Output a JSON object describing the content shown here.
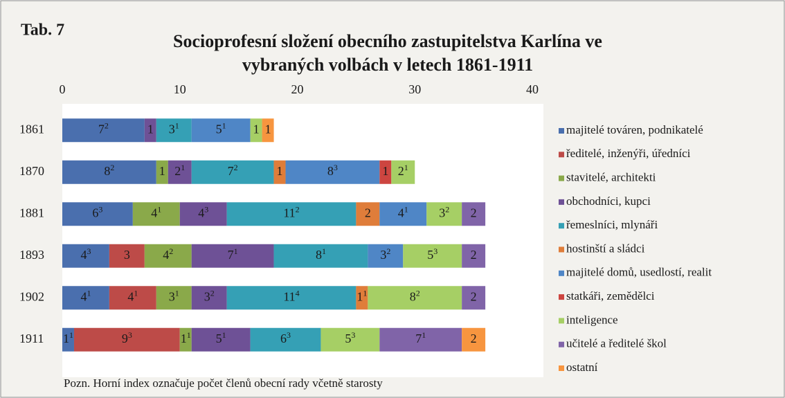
{
  "chart_data": {
    "type": "stacked-bar-horizontal",
    "label": "Tab. 7",
    "title_lines": [
      "Socioprofesní složení obecního zastupitelstva Karlína ve",
      "vybraných volbách v letech 1861-1911"
    ],
    "note": "Pozn. Horní index označuje počet členů obecní rady včetně starosty",
    "categories": [
      "1861",
      "1870",
      "1881",
      "1893",
      "1902",
      "1911"
    ],
    "xlim": [
      0,
      40
    ],
    "xticks": [
      0,
      10,
      20,
      30,
      40
    ],
    "legend": "right",
    "series": [
      {
        "name": "majitelé továren, podnikatelé",
        "color": "#4a6fae",
        "values": [
          7,
          8,
          6,
          4,
          4,
          1
        ],
        "superscripts": [
          2,
          2,
          3,
          3,
          1,
          1
        ]
      },
      {
        "name": "ředitelé, inženýři, úředníci",
        "color": "#bd4b48",
        "values": [
          null,
          null,
          null,
          3,
          4,
          9
        ],
        "superscripts": [
          null,
          null,
          null,
          null,
          1,
          3
        ]
      },
      {
        "name": "stavitelé, architekti",
        "color": "#8aa94a",
        "values": [
          null,
          1,
          4,
          4,
          3,
          1
        ],
        "superscripts": [
          null,
          null,
          1,
          2,
          1,
          1
        ]
      },
      {
        "name": "obchodníci, kupci",
        "color": "#6e5196",
        "values": [
          1,
          2,
          4,
          7,
          3,
          5
        ],
        "superscripts": [
          null,
          1,
          3,
          1,
          2,
          1
        ]
      },
      {
        "name": "řemeslníci, mlynáři",
        "color": "#35a0b5",
        "values": [
          3,
          7,
          11,
          8,
          11,
          6
        ],
        "superscripts": [
          1,
          2,
          2,
          1,
          4,
          3
        ]
      },
      {
        "name": "hostinští a sládci",
        "color": "#df7d3a",
        "values": [
          null,
          1,
          2,
          null,
          1,
          null
        ],
        "superscripts": [
          null,
          null,
          null,
          null,
          1,
          null
        ]
      },
      {
        "name": "majitelé domů, usedlostí, realit",
        "color": "#4f86c6",
        "values": [
          5,
          8,
          4,
          3,
          null,
          null
        ],
        "superscripts": [
          1,
          3,
          1,
          2,
          null,
          null
        ]
      },
      {
        "name": "statkáři, zemědělci",
        "color": "#cd4540",
        "values": [
          null,
          1,
          null,
          null,
          null,
          null
        ],
        "superscripts": [
          null,
          null,
          null,
          null,
          null,
          null
        ]
      },
      {
        "name": "inteligence",
        "color": "#a6cf65",
        "values": [
          1,
          2,
          3,
          5,
          8,
          5
        ],
        "superscripts": [
          null,
          1,
          2,
          3,
          2,
          3
        ]
      },
      {
        "name": "učitelé a ředitelé škol",
        "color": "#8064a8",
        "values": [
          null,
          null,
          2,
          2,
          2,
          7
        ],
        "superscripts": [
          null,
          null,
          null,
          null,
          null,
          1
        ]
      },
      {
        "name": "ostatní",
        "color": "#f7953f",
        "values": [
          1,
          null,
          null,
          null,
          null,
          2
        ],
        "superscripts": [
          null,
          null,
          null,
          null,
          null,
          null
        ]
      }
    ]
  }
}
